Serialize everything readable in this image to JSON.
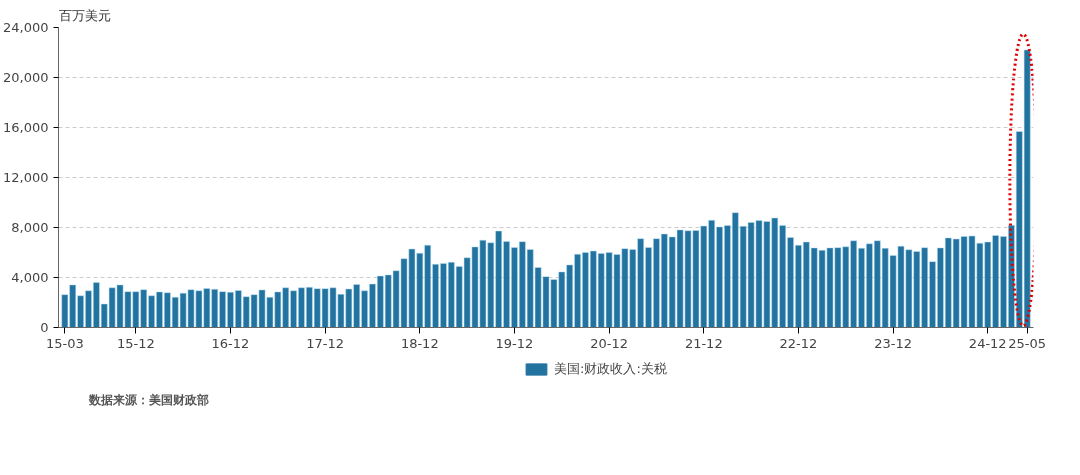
{
  "chart_data": {
    "type": "bar",
    "ylabel": "百万美元",
    "categories": [
      "15-03",
      null,
      null,
      null,
      null,
      null,
      null,
      null,
      null,
      "15-12",
      null,
      null,
      null,
      null,
      null,
      null,
      null,
      null,
      null,
      null,
      null,
      "16-12",
      null,
      null,
      null,
      null,
      null,
      null,
      null,
      null,
      null,
      null,
      null,
      "17-12",
      null,
      null,
      null,
      null,
      null,
      null,
      null,
      null,
      null,
      null,
      null,
      "18-12",
      null,
      null,
      null,
      null,
      null,
      null,
      null,
      null,
      null,
      null,
      null,
      "19-12",
      null,
      null,
      null,
      null,
      null,
      null,
      null,
      null,
      null,
      null,
      null,
      "20-12",
      null,
      null,
      null,
      null,
      null,
      null,
      null,
      null,
      null,
      null,
      null,
      "21-12",
      null,
      null,
      null,
      null,
      null,
      null,
      null,
      null,
      null,
      null,
      null,
      "22-12",
      null,
      null,
      null,
      null,
      null,
      null,
      null,
      null,
      null,
      null,
      null,
      "23-12",
      null,
      null,
      null,
      null,
      null,
      null,
      null,
      null,
      null,
      null,
      null,
      "24-12",
      null,
      null,
      null,
      null,
      "25-05"
    ],
    "series": [
      {
        "name": "美国:财政收入:关税",
        "color": "#22739f",
        "values": [
          2630,
          3410,
          2540,
          2940,
          3600,
          1880,
          3180,
          3410,
          2870,
          2870,
          3030,
          2540,
          2850,
          2780,
          2420,
          2750,
          3030,
          2940,
          3130,
          3060,
          2870,
          2820,
          2960,
          2470,
          2630,
          3010,
          2420,
          2850,
          3180,
          2940,
          3180,
          3220,
          3110,
          3110,
          3180,
          2660,
          3080,
          3440,
          2940,
          3480,
          4120,
          4210,
          4540,
          5510,
          6280,
          5950,
          6590,
          5060,
          5130,
          5220,
          4890,
          5580,
          6450,
          6990,
          6780,
          7720,
          6890,
          6400,
          6870,
          6240,
          4800,
          4070,
          3840,
          4450,
          5010,
          5860,
          6000,
          6120,
          5930,
          6000,
          5840,
          6310,
          6240,
          7110,
          6400,
          7110,
          7480,
          7250,
          7810,
          7740,
          7760,
          8120,
          8580,
          8050,
          8170,
          9190,
          8100,
          8410,
          8570,
          8480,
          8760,
          8170,
          7200,
          6580,
          6840,
          6370,
          6180,
          6370,
          6390,
          6460,
          6940,
          6340,
          6700,
          6940,
          6340,
          5770,
          6510,
          6220,
          6080,
          6390,
          5270,
          6370,
          7170,
          7080,
          7290,
          7320,
          6750,
          6840,
          7360,
          7290,
          8190,
          15680,
          22210
        ]
      }
    ],
    "ylim": [
      0,
      24000
    ],
    "yticks": [
      0,
      {
        "value": 4000,
        "label": "4,000"
      },
      {
        "value": 8000,
        "label": "8,000"
      },
      {
        "value": 12000,
        "label": "12,000"
      },
      {
        "value": 16000,
        "label": "16,000"
      },
      {
        "value": 20000,
        "label": "20,000"
      },
      {
        "value": 24000,
        "label": "24,000"
      }
    ],
    "grid": "y",
    "legend": "bottom",
    "annotations": [
      "数据来源：美国财政部"
    ]
  }
}
